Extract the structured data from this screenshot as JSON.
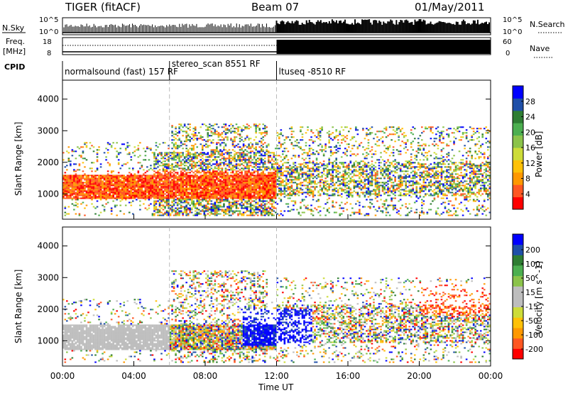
{
  "header": {
    "radar": "TIGER (fitACF)",
    "beam": "Beam 07",
    "date": "01/May/2011"
  },
  "top_panels": {
    "nsky_label": "N.Sky",
    "nsearch_label": "N.Search",
    "nsky_ticks": [
      "10^5",
      "10^0"
    ],
    "freq_label": "Freq.",
    "freq_unit": "[MHz]",
    "freq_ticks": [
      "18",
      "8"
    ],
    "nave_label": "Nave",
    "nave_ticks": [
      "60",
      "0"
    ],
    "cpid_label": "CPID",
    "cpid_segments": [
      {
        "label": "normalsound (fast) 157 RF",
        "start": 0.0,
        "end": 6.0
      },
      {
        "label": "stereo_scan 8551 RF",
        "start": 6.0,
        "end": 12.0
      },
      {
        "label": "ltuseq -8510 RF",
        "start": 12.0,
        "end": 24.0
      }
    ]
  },
  "chart_data": [
    {
      "type": "heatmap",
      "title": "",
      "xlabel": "Time UT",
      "ylabel": "Slant Range [km]",
      "xlim": [
        0,
        24
      ],
      "ylim": [
        200,
        4600
      ],
      "x_ticks": [
        "00:00",
        "04:00",
        "08:00",
        "12:00",
        "16:00",
        "20:00",
        "00:00"
      ],
      "y_ticks": [
        "1000",
        "2000",
        "3000",
        "4000"
      ],
      "colorbar_label": "Power [dB]",
      "colorbar_ticks": [
        "4",
        "8",
        "12",
        "16",
        "20",
        "24",
        "28"
      ],
      "colorbar_colors": [
        "#0000ff",
        "#1f4fa8",
        "#2e7d32",
        "#4caf50",
        "#8bc34a",
        "#cddc39",
        "#ffc107",
        "#ff9800",
        "#ff5722",
        "#ff0000"
      ],
      "colorbar_range": [
        0,
        32
      ]
    },
    {
      "type": "heatmap",
      "title": "",
      "xlabel": "Time UT",
      "ylabel": "Slant Range [km]",
      "xlim": [
        0,
        24
      ],
      "ylim": [
        200,
        4600
      ],
      "x_ticks": [
        "00:00",
        "04:00",
        "08:00",
        "12:00",
        "16:00",
        "20:00",
        "00:00"
      ],
      "y_ticks": [
        "1000",
        "2000",
        "3000",
        "4000"
      ],
      "colorbar_label": "Velocity [m s^-1]",
      "colorbar_ticks": [
        "200",
        "100",
        "50",
        "15",
        "-15",
        "-50",
        "-100",
        "-200"
      ],
      "colorbar_colors": [
        "#0000ff",
        "#1f4fa8",
        "#2e7d32",
        "#4caf50",
        "#8bc34a",
        "#bdbdbd",
        "#bdbdbd",
        "#cddc39",
        "#ffc107",
        "#ff9800",
        "#ff5722",
        "#ff0000"
      ]
    }
  ],
  "colors": {
    "power_high": "#ff2000",
    "power_mid": "#ff9800",
    "power_low": "#2e7d32",
    "power_min": "#0000ff",
    "vel_ground": "#bdbdbd",
    "vel_pos": "#0000ff",
    "vel_neg": "#ff0000"
  }
}
